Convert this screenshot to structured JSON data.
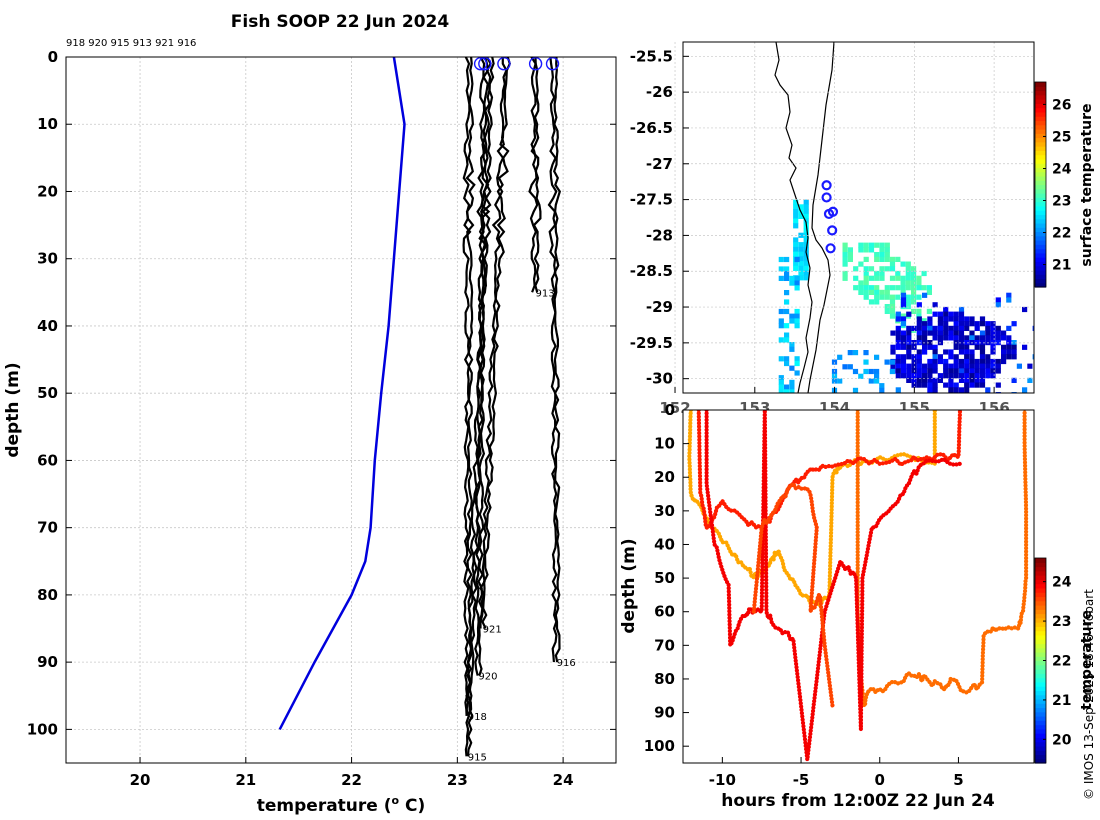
{
  "title": "Fish SOOP 22 Jun 2024",
  "credit": "© IMOS 13-Sep-2025 18:46 Hobart",
  "colors": {
    "profile_line": "#000000",
    "climatology": "#0000dd",
    "marker": "#1a1aff"
  },
  "chart_data": [
    {
      "type": "line",
      "name": "temperature-depth profiles",
      "xlabel": "temperature (",
      "xlabel_sup": "o",
      "xlabel_end": " C)",
      "ylabel": "depth (m)",
      "xlim": [
        19.3,
        24.5
      ],
      "ylim": [
        105,
        0
      ],
      "xticks": [
        20,
        21,
        22,
        23,
        24
      ],
      "yticks": [
        0,
        10,
        20,
        30,
        40,
        50,
        60,
        70,
        80,
        90,
        100
      ],
      "grid": true,
      "top_labels": "918 920 915 913 921 916",
      "climatology": {
        "temperature": [
          22.4,
          22.5,
          22.45,
          22.4,
          22.35,
          22.28,
          22.22,
          22.18,
          22.13,
          22.0,
          21.65,
          21.32
        ],
        "depth": [
          0,
          10,
          20,
          30,
          40,
          50,
          60,
          70,
          75,
          80,
          90,
          100
        ]
      },
      "profiles": [
        {
          "id": "918",
          "t0": 23.1,
          "t_end": 23.08,
          "max_depth": 98,
          "label": "918"
        },
        {
          "id": "920",
          "t0": 23.24,
          "t_end": 23.18,
          "max_depth": 92,
          "label": "920"
        },
        {
          "id": "915",
          "t0": 23.3,
          "t_end": 23.08,
          "max_depth": 104,
          "label": "915"
        },
        {
          "id": "913",
          "t0": 23.72,
          "t_end": 23.72,
          "max_depth": 35,
          "label": "913"
        },
        {
          "id": "921",
          "t0": 23.45,
          "t_end": 23.22,
          "max_depth": 85,
          "label": "921"
        },
        {
          "id": "916",
          "t0": 23.9,
          "t_end": 23.92,
          "max_depth": 90,
          "label": "916"
        }
      ],
      "surface_markers": [
        23.22,
        23.26,
        23.44,
        23.74,
        23.9
      ]
    },
    {
      "type": "heatmap",
      "name": "sea surface temperature map",
      "lon_range": [
        152.1,
        156.5
      ],
      "lat_range": [
        -30.2,
        -25.3
      ],
      "yticks": [
        "-25.5",
        "-26",
        "-26.5",
        "-27",
        "-27.5",
        "-28",
        "-28.5",
        "-29",
        "-29.5",
        "-30"
      ],
      "xticks": [
        "152",
        "153",
        "154",
        "155",
        "156"
      ],
      "colorbar_label": "surface temperature",
      "colorbar_ticks": [
        "21",
        "22",
        "23",
        "24",
        "25",
        "26"
      ],
      "colorbar_range": [
        20.3,
        26.7
      ],
      "station_markers": [
        [
          153.9,
          -27.3
        ],
        [
          153.9,
          -27.47
        ],
        [
          153.93,
          -27.7
        ],
        [
          153.98,
          -27.67
        ],
        [
          153.97,
          -27.93
        ],
        [
          153.95,
          -28.18
        ]
      ]
    },
    {
      "type": "scatter",
      "name": "depth vs time",
      "xlabel": "hours from 12:00Z 22 Jun 24",
      "ylabel": "depth (m)",
      "xlim": [
        -12.5,
        9.8
      ],
      "ylim": [
        105,
        0
      ],
      "xticks": [
        -10,
        -5,
        0,
        5
      ],
      "yticks": [
        0,
        10,
        20,
        30,
        40,
        50,
        60,
        70,
        80,
        90,
        100
      ],
      "colorbar_label": "temperature",
      "colorbar_ticks": [
        "20",
        "21",
        "22",
        "23",
        "24"
      ],
      "colorbar_range": [
        19.4,
        24.6
      ],
      "tracks": [
        {
          "temp": 23.1,
          "points": [
            [
              -12,
              0
            ],
            [
              -12.1,
              14
            ],
            [
              -12,
              25
            ],
            [
              -11,
              32
            ],
            [
              -9.5,
              42
            ],
            [
              -8.5,
              47
            ],
            [
              -7.8,
              50
            ],
            [
              -7,
              46
            ],
            [
              -6.5,
              42
            ],
            [
              -6,
              48
            ],
            [
              -5,
              55
            ],
            [
              -3.8,
              58
            ],
            [
              -3.2,
              55
            ],
            [
              -3,
              20
            ],
            [
              -2.5,
              17
            ],
            [
              -1,
              15
            ],
            [
              2,
              14
            ],
            [
              3.5,
              16
            ],
            [
              3.5,
              0
            ]
          ]
        },
        {
          "temp": 23.4,
          "points": [
            [
              -1.4,
              0
            ],
            [
              -1.4,
              60
            ],
            [
              -1.2,
              80
            ],
            [
              -1,
              88
            ],
            [
              -0.8,
              84
            ],
            [
              0,
              83
            ],
            [
              1,
              81
            ],
            [
              2,
              79
            ],
            [
              3,
              80
            ],
            [
              4,
              83
            ],
            [
              4.5,
              80
            ],
            [
              5.5,
              84
            ],
            [
              6.5,
              81
            ],
            [
              6.6,
              67
            ],
            [
              7.5,
              65
            ],
            [
              8.8,
              65
            ],
            [
              9.1,
              60
            ],
            [
              9.3,
              50
            ],
            [
              9.3,
              30
            ],
            [
              9.2,
              10
            ],
            [
              9.2,
              0
            ]
          ]
        },
        {
          "temp": 23.8,
          "points": [
            [
              -11.5,
              0
            ],
            [
              -11.4,
              25
            ],
            [
              -11,
              35
            ],
            [
              -10,
              27
            ],
            [
              -8.5,
              33
            ],
            [
              -7.5,
              35
            ],
            [
              -6.5,
              30
            ],
            [
              -5.5,
              22
            ],
            [
              -4.5,
              18
            ],
            [
              -3.5,
              17
            ],
            [
              -2,
              15
            ],
            [
              0,
              16
            ],
            [
              2,
              15
            ],
            [
              3,
              14
            ],
            [
              5,
              14
            ],
            [
              5.1,
              0
            ]
          ]
        },
        {
          "temp": 24.0,
          "points": [
            [
              -11,
              0
            ],
            [
              -11,
              22
            ],
            [
              -10.5,
              40
            ],
            [
              -9.6,
              52
            ],
            [
              -9.5,
              70
            ],
            [
              -8.8,
              62
            ],
            [
              -8.2,
              59
            ],
            [
              -7.5,
              60
            ],
            [
              -7.3,
              0
            ],
            [
              -7.2,
              60
            ],
            [
              -6.5,
              65
            ],
            [
              -5.5,
              68
            ],
            [
              -4.6,
              104
            ],
            [
              -4,
              80
            ],
            [
              -3.5,
              60
            ],
            [
              -2.5,
              45
            ],
            [
              -1.5,
              50
            ],
            [
              -1.2,
              95
            ],
            [
              -1.1,
              50
            ],
            [
              -0.5,
              35
            ],
            [
              1,
              28
            ],
            [
              2,
              20
            ],
            [
              3,
              15
            ],
            [
              5.1,
              16
            ]
          ]
        },
        {
          "temp": 23.6,
          "points": [
            [
              -8,
              60
            ],
            [
              -7.5,
              35
            ],
            [
              -6.5,
              28
            ],
            [
              -5.5,
              22
            ],
            [
              -4.5,
              24
            ],
            [
              -4,
              35
            ],
            [
              -4.4,
              60
            ],
            [
              -3.8,
              55
            ],
            [
              -3.5,
              70
            ],
            [
              -3,
              88
            ]
          ]
        }
      ]
    }
  ]
}
